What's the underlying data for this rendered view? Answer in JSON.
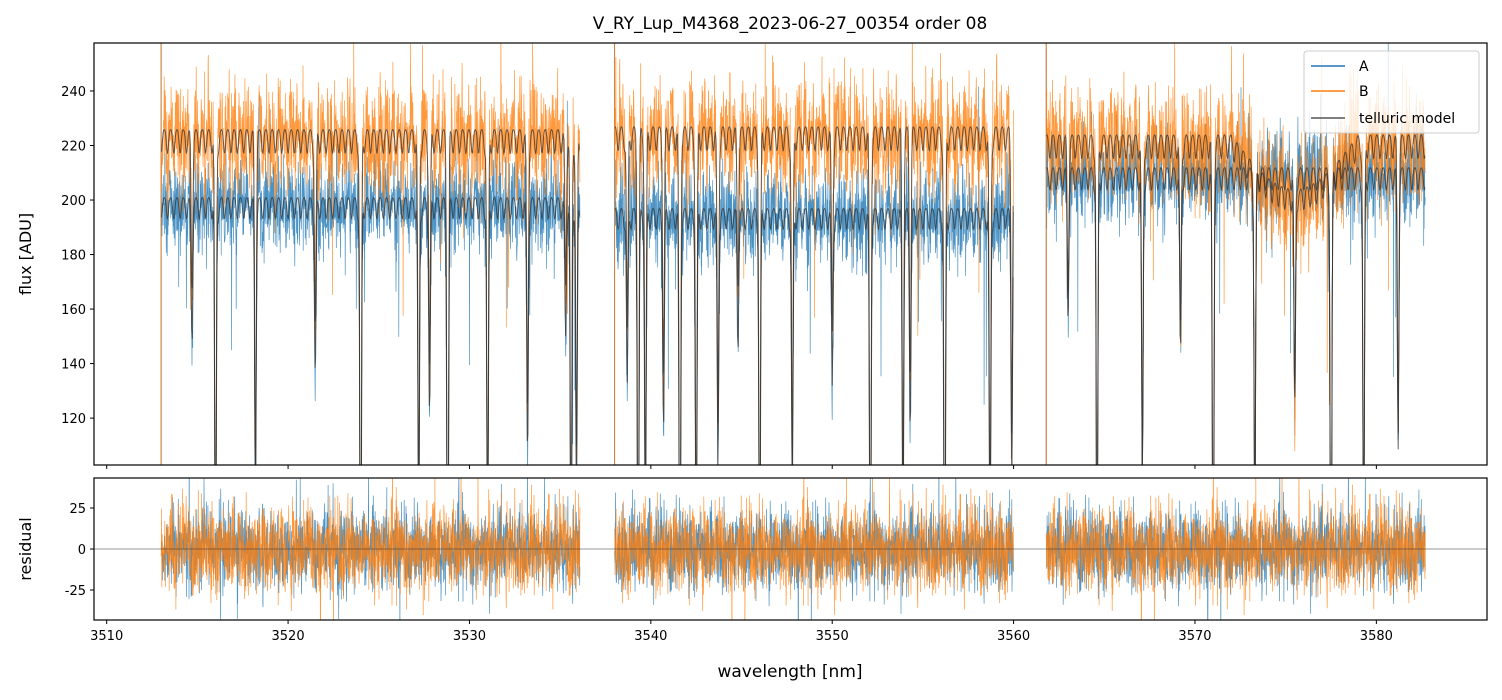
{
  "chart_data": [
    {
      "type": "line",
      "title": "V_RY_Lup_M4368_2023-06-27_00354  order 08",
      "xlabel": "",
      "ylabel": "flux [ADU]",
      "xlim": [
        3509.3,
        3586.1
      ],
      "ylim": [
        102.8,
        257.6
      ],
      "yticks": [
        120,
        140,
        160,
        180,
        200,
        220,
        240
      ],
      "legend": {
        "placement": "top-right",
        "entries": [
          "A",
          "B",
          "telluric model"
        ]
      },
      "colors": {
        "A": "#1f77b4",
        "B": "#ff7f0e",
        "model": "#333333"
      },
      "segments": [
        [
          3513.0,
          3536.1
        ],
        [
          3538.0,
          3560.0
        ],
        [
          3561.8,
          3582.7
        ]
      ],
      "series": [
        {
          "name": "A",
          "continuum": [
            201,
            197,
            212
          ],
          "noise_sd": 8
        },
        {
          "name": "B",
          "continuum": [
            226,
            227,
            224
          ],
          "noise_sd": 10
        }
      ],
      "telluric_lines_nm": [
        3514.7,
        3516.0,
        3518.2,
        3521.5,
        3524.0,
        3527.2,
        3527.8,
        3528.8,
        3531.0,
        3533.2,
        3535.3,
        3535.6,
        3535.9,
        3538.7,
        3539.3,
        3539.7,
        3540.7,
        3541.6,
        3542.5,
        3543.7,
        3544.8,
        3546.0,
        3547.8,
        3550.0,
        3552.1,
        3553.9,
        3554.3,
        3556.2,
        3558.7,
        3559.9,
        3563.0,
        3564.6,
        3567.1,
        3569.2,
        3571.0,
        3573.3,
        3575.5,
        3577.5,
        3579.3,
        3581.2
      ]
    },
    {
      "type": "line",
      "xlabel": "wavelength [nm]",
      "ylabel": "residual",
      "xlim": [
        3509.3,
        3586.1
      ],
      "ylim": [
        -43.3,
        43.3
      ],
      "xticks": [
        3510,
        3520,
        3530,
        3540,
        3550,
        3560,
        3570,
        3580
      ],
      "yticks": [
        -25,
        0,
        25
      ],
      "series": [
        {
          "name": "A",
          "noise_sd": 12
        },
        {
          "name": "B",
          "noise_sd": 13
        }
      ]
    }
  ]
}
